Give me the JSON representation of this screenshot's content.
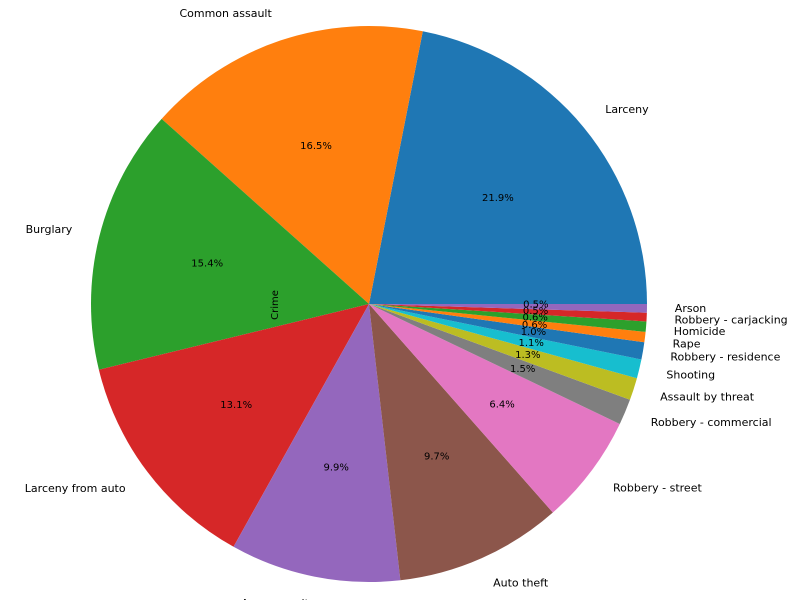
{
  "chart_data": {
    "type": "pie",
    "ylabel": "Crime",
    "start_angle": 0,
    "direction": "counterclockwise",
    "slices": [
      {
        "label": "Larceny",
        "pct_label": "21.9%",
        "value": 21.9,
        "color": "#1f77b4"
      },
      {
        "label": "Common assault",
        "pct_label": "16.5%",
        "value": 16.5,
        "color": "#ff7f0e"
      },
      {
        "label": "Burglary",
        "pct_label": "15.4%",
        "value": 15.4,
        "color": "#2ca02c"
      },
      {
        "label": "Larceny from auto",
        "pct_label": "13.1%",
        "value": 13.1,
        "color": "#d62728"
      },
      {
        "label": "Agg. assault",
        "pct_label": "9.9%",
        "value": 9.9,
        "color": "#9467bd"
      },
      {
        "label": "Auto theft",
        "pct_label": "9.7%",
        "value": 9.7,
        "color": "#8c564b"
      },
      {
        "label": "Robbery - street",
        "pct_label": "6.4%",
        "value": 6.4,
        "color": "#e377c2"
      },
      {
        "label": "Robbery - commercial",
        "pct_label": "1.5%",
        "value": 1.5,
        "color": "#7f7f7f"
      },
      {
        "label": "Assault by threat",
        "pct_label": "1.3%",
        "value": 1.3,
        "color": "#bcbd22"
      },
      {
        "label": "Shooting",
        "pct_label": "1.1%",
        "value": 1.1,
        "color": "#17becf"
      },
      {
        "label": "Robbery - residence",
        "pct_label": "1.0%",
        "value": 1.0,
        "color": "#1f77b4"
      },
      {
        "label": "Rape",
        "pct_label": "0.6%",
        "value": 0.6,
        "color": "#ff7f0e"
      },
      {
        "label": "Homicide",
        "pct_label": "0.6%",
        "value": 0.6,
        "color": "#2ca02c"
      },
      {
        "label": "Robbery - carjacking",
        "pct_label": "0.5%",
        "value": 0.5,
        "color": "#d62728"
      },
      {
        "label": "Arson",
        "pct_label": "0.5%",
        "value": 0.5,
        "color": "#9467bd"
      }
    ]
  }
}
